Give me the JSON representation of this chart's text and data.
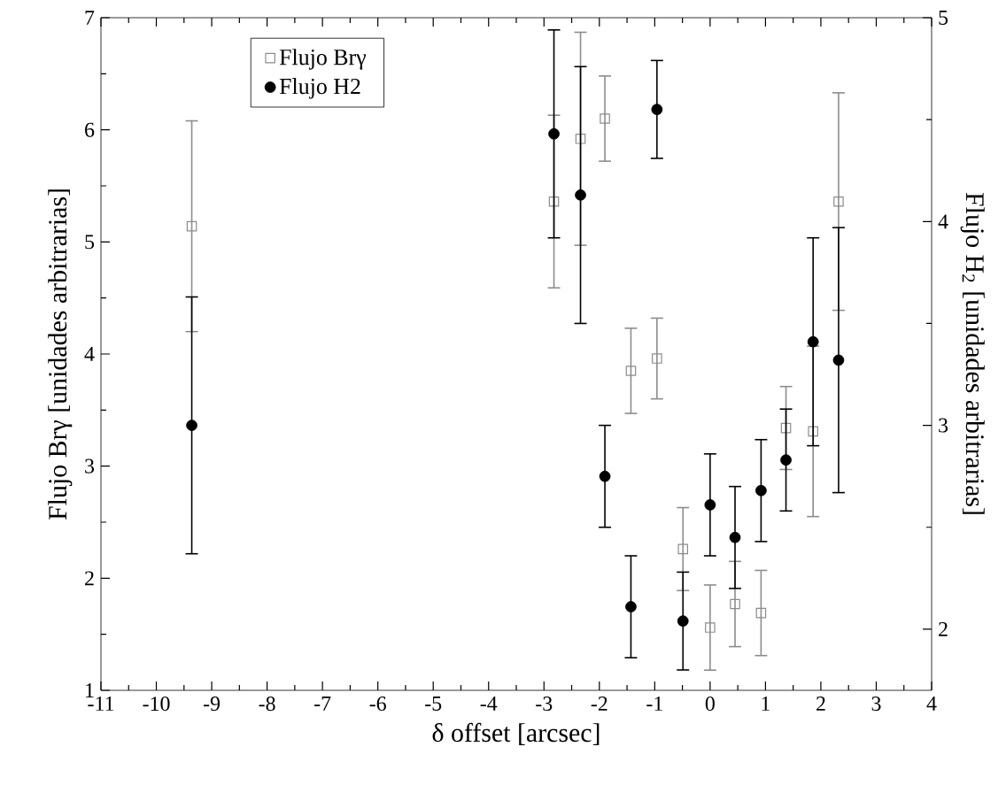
{
  "chart_data": {
    "type": "scatter",
    "xlabel": "δ offset [arcsec]",
    "ylabel": "Flujo Brγ [unidades arbitrarias]",
    "y2label": "Flujo H$_{2}$ [unidades arbitrarias]",
    "xlim": [
      -11,
      4
    ],
    "xticks": [
      -11,
      -10,
      -9,
      -8,
      -7,
      -6,
      -5,
      -4,
      -3,
      -2,
      -1,
      0,
      1,
      2,
      3,
      4
    ],
    "ylim": [
      1,
      7
    ],
    "yticks": [
      1,
      2,
      3,
      4,
      5,
      6,
      7
    ],
    "y2lim": [
      1.7,
      5
    ],
    "y2ticks": [
      2,
      3,
      4,
      5
    ],
    "legend": "top left",
    "grid": false,
    "series": [
      {
        "name": "Flujo Brγ",
        "color": "#8c8c8c",
        "marker": "square",
        "x": [
          -9.36,
          -2.82,
          -2.34,
          -1.9,
          -1.43,
          -0.96,
          -0.49,
          0,
          0.45,
          0.92,
          1.37,
          1.86,
          2.32
        ],
        "values": [
          5.14,
          5.36,
          5.92,
          6.1,
          3.85,
          3.96,
          2.26,
          1.56,
          1.77,
          1.69,
          3.34,
          3.31,
          5.36
        ],
        "errors": [
          0.94,
          0.77,
          0.95,
          0.38,
          0.38,
          0.36,
          0.37,
          0.38,
          0.38,
          0.38,
          0.37,
          0.76,
          0.97
        ]
      },
      {
        "name": "Flujo H2",
        "color": "#000000",
        "marker": "circle",
        "axis": "y2",
        "x": [
          -9.36,
          -2.82,
          -2.34,
          -1.9,
          -1.43,
          -0.96,
          -0.49,
          0,
          0.45,
          0.92,
          1.37,
          1.86,
          2.32
        ],
        "values": [
          3.0,
          4.43,
          4.13,
          2.75,
          2.11,
          4.55,
          2.04,
          2.61,
          2.45,
          2.68,
          2.83,
          3.41,
          3.32
        ],
        "errors": [
          0.63,
          0.51,
          0.63,
          0.25,
          0.25,
          0.24,
          0.24,
          0.25,
          0.25,
          0.25,
          0.25,
          0.51,
          0.65
        ]
      }
    ]
  }
}
